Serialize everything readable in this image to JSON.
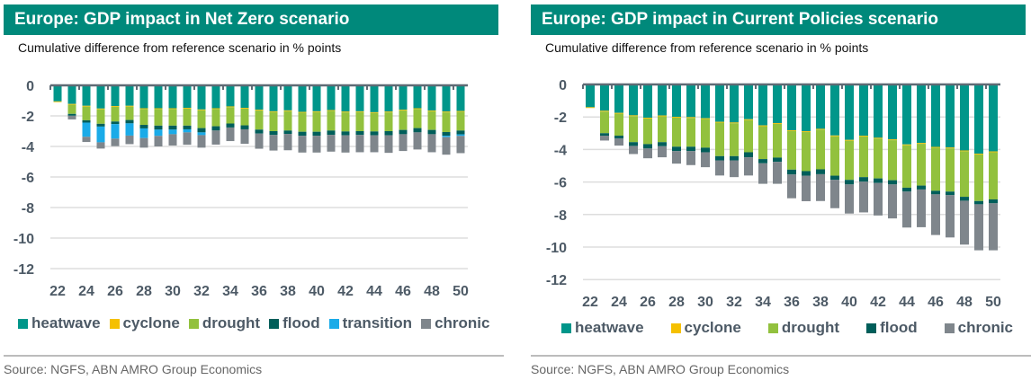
{
  "colors": {
    "heatwave": "#00968a",
    "cyclone": "#f5c000",
    "drought": "#92c13e",
    "flood": "#005e5a",
    "transition": "#1aabe8",
    "chronic": "#7f868c",
    "title_bar": "#00897b"
  },
  "source": "Source: NGFS, ABN AMRO Group Economics",
  "chart_data": [
    {
      "type": "bar",
      "stacked": true,
      "title": "Europe: GDP impact in Net Zero scenario",
      "subtitle": "Cumulative difference from reference scenario in % points",
      "xlabel": "",
      "ylabel": "",
      "ylim": [
        -12,
        0
      ],
      "yticks": [
        0,
        -2,
        -4,
        -6,
        -8,
        -10,
        -12
      ],
      "grid": true,
      "legend_position": "bottom",
      "categories": [
        "22",
        "23",
        "24",
        "25",
        "26",
        "27",
        "28",
        "29",
        "30",
        "31",
        "32",
        "33",
        "34",
        "35",
        "36",
        "37",
        "38",
        "39",
        "40",
        "41",
        "42",
        "43",
        "44",
        "45",
        "46",
        "47",
        "48",
        "49",
        "50"
      ],
      "xtick_labels": [
        "22",
        "24",
        "26",
        "28",
        "30",
        "32",
        "34",
        "36",
        "38",
        "40",
        "42",
        "44",
        "46",
        "48",
        "50"
      ],
      "series": [
        {
          "name": "heatwave",
          "values": [
            -1.05,
            -1.22,
            -1.34,
            -1.52,
            -1.36,
            -1.34,
            -1.5,
            -1.5,
            -1.5,
            -1.48,
            -1.58,
            -1.5,
            -1.38,
            -1.48,
            -1.6,
            -1.7,
            -1.64,
            -1.74,
            -1.7,
            -1.62,
            -1.72,
            -1.7,
            -1.76,
            -1.72,
            -1.6,
            -1.5,
            -1.65,
            -1.72,
            -1.68
          ]
        },
        {
          "name": "cyclone",
          "values": [
            -0.05,
            -0.05,
            -0.05,
            -0.05,
            -0.05,
            -0.05,
            -0.05,
            -0.05,
            -0.05,
            -0.05,
            -0.05,
            -0.05,
            -0.05,
            -0.05,
            -0.05,
            -0.05,
            -0.05,
            -0.05,
            -0.05,
            -0.05,
            -0.05,
            -0.05,
            -0.05,
            -0.05,
            -0.05,
            -0.05,
            -0.05,
            -0.05,
            -0.05
          ]
        },
        {
          "name": "drought",
          "values": [
            0,
            -0.6,
            -0.9,
            -0.95,
            -0.96,
            -0.88,
            -1.04,
            -1.09,
            -1.09,
            -1.11,
            -1.17,
            -1.13,
            -1.07,
            -1.09,
            -1.25,
            -1.25,
            -1.27,
            -1.25,
            -1.29,
            -1.29,
            -1.25,
            -1.25,
            -1.21,
            -1.23,
            -1.27,
            -1.25,
            -1.22,
            -1.29,
            -1.23
          ]
        },
        {
          "name": "flood",
          "values": [
            0,
            -0.12,
            -0.15,
            -0.18,
            -0.17,
            -0.22,
            -0.23,
            -0.26,
            -0.26,
            -0.24,
            -0.28,
            -0.28,
            -0.26,
            -0.26,
            -0.26,
            -0.25,
            -0.22,
            -0.26,
            -0.26,
            -0.28,
            -0.25,
            -0.25,
            -0.25,
            -0.27,
            -0.28,
            -0.28,
            -0.28,
            -0.24,
            -0.25
          ]
        },
        {
          "name": "transition",
          "values": [
            0,
            0,
            -0.93,
            -1.03,
            -0.95,
            -0.8,
            -0.63,
            -0.41,
            -0.3,
            -0.2,
            -0.18,
            0,
            0,
            0,
            0,
            0,
            0,
            0,
            0,
            0,
            0,
            0,
            0,
            0,
            0,
            0,
            0,
            -0.09,
            -0.1
          ]
        },
        {
          "name": "chronic",
          "values": [
            0,
            -0.24,
            -0.34,
            -0.41,
            -0.49,
            -0.56,
            -0.63,
            -0.69,
            -0.74,
            -0.81,
            -0.82,
            -0.92,
            -0.89,
            -0.95,
            -0.99,
            -1.02,
            -1.07,
            -1.1,
            -1.1,
            -1.1,
            -1.13,
            -1.13,
            -1.11,
            -1.15,
            -1.1,
            -1.12,
            -1.18,
            -1.15,
            -1.13
          ]
        }
      ]
    },
    {
      "type": "bar",
      "stacked": true,
      "title": "Europe: GDP impact in Current Policies scenario",
      "subtitle": "Cumulative difference from reference scenario in % points",
      "xlabel": "",
      "ylabel": "",
      "ylim": [
        -12,
        0
      ],
      "yticks": [
        0,
        -2,
        -4,
        -6,
        -8,
        -10,
        -12
      ],
      "grid": true,
      "legend_position": "bottom",
      "categories": [
        "22",
        "23",
        "24",
        "25",
        "26",
        "27",
        "28",
        "29",
        "30",
        "31",
        "32",
        "33",
        "34",
        "35",
        "36",
        "37",
        "38",
        "39",
        "40",
        "41",
        "42",
        "43",
        "44",
        "45",
        "46",
        "47",
        "48",
        "49",
        "50"
      ],
      "xtick_labels": [
        "22",
        "24",
        "26",
        "28",
        "30",
        "32",
        "34",
        "36",
        "38",
        "40",
        "42",
        "44",
        "46",
        "48",
        "50"
      ],
      "series": [
        {
          "name": "heatwave",
          "values": [
            -1.4,
            -1.62,
            -1.75,
            -1.9,
            -2.05,
            -1.91,
            -1.99,
            -2.01,
            -2.08,
            -2.3,
            -2.34,
            -2.14,
            -2.52,
            -2.38,
            -2.82,
            -2.88,
            -2.73,
            -3.14,
            -3.41,
            -3.15,
            -3.28,
            -3.38,
            -3.69,
            -3.6,
            -3.84,
            -3.88,
            -4.06,
            -4.26,
            -4.12
          ]
        },
        {
          "name": "cyclone",
          "values": [
            -0.05,
            -0.05,
            -0.05,
            -0.05,
            -0.05,
            -0.05,
            -0.05,
            -0.05,
            -0.05,
            -0.05,
            -0.05,
            -0.05,
            -0.05,
            -0.05,
            -0.05,
            -0.05,
            -0.05,
            -0.05,
            -0.05,
            -0.05,
            -0.05,
            -0.05,
            -0.05,
            -0.05,
            -0.05,
            -0.05,
            -0.05,
            -0.05,
            -0.05
          ]
        },
        {
          "name": "drought",
          "values": [
            0,
            -1.33,
            -1.35,
            -1.6,
            -1.57,
            -1.59,
            -1.79,
            -1.77,
            -1.76,
            -2.06,
            -2.02,
            -1.98,
            -2.02,
            -2.07,
            -2.37,
            -2.4,
            -2.44,
            -2.42,
            -2.41,
            -2.5,
            -2.45,
            -2.46,
            -2.61,
            -2.57,
            -2.65,
            -2.66,
            -2.8,
            -2.86,
            -2.9
          ]
        },
        {
          "name": "flood",
          "values": [
            0,
            -0.15,
            -0.18,
            -0.23,
            -0.27,
            -0.25,
            -0.27,
            -0.27,
            -0.28,
            -0.26,
            -0.26,
            -0.31,
            -0.26,
            -0.26,
            -0.3,
            -0.28,
            -0.3,
            -0.26,
            -0.28,
            -0.28,
            -0.28,
            -0.26,
            -0.24,
            -0.24,
            -0.22,
            -0.22,
            -0.24,
            -0.2,
            -0.24
          ]
        },
        {
          "name": "chronic",
          "values": [
            0,
            -0.3,
            -0.43,
            -0.5,
            -0.6,
            -0.68,
            -0.77,
            -0.86,
            -0.92,
            -0.93,
            -1.03,
            -1.12,
            -1.26,
            -1.35,
            -1.46,
            -1.57,
            -1.65,
            -1.74,
            -1.79,
            -1.89,
            -2.0,
            -2.09,
            -2.21,
            -2.32,
            -2.5,
            -2.6,
            -2.7,
            -2.83,
            -2.89
          ]
        }
      ]
    }
  ]
}
